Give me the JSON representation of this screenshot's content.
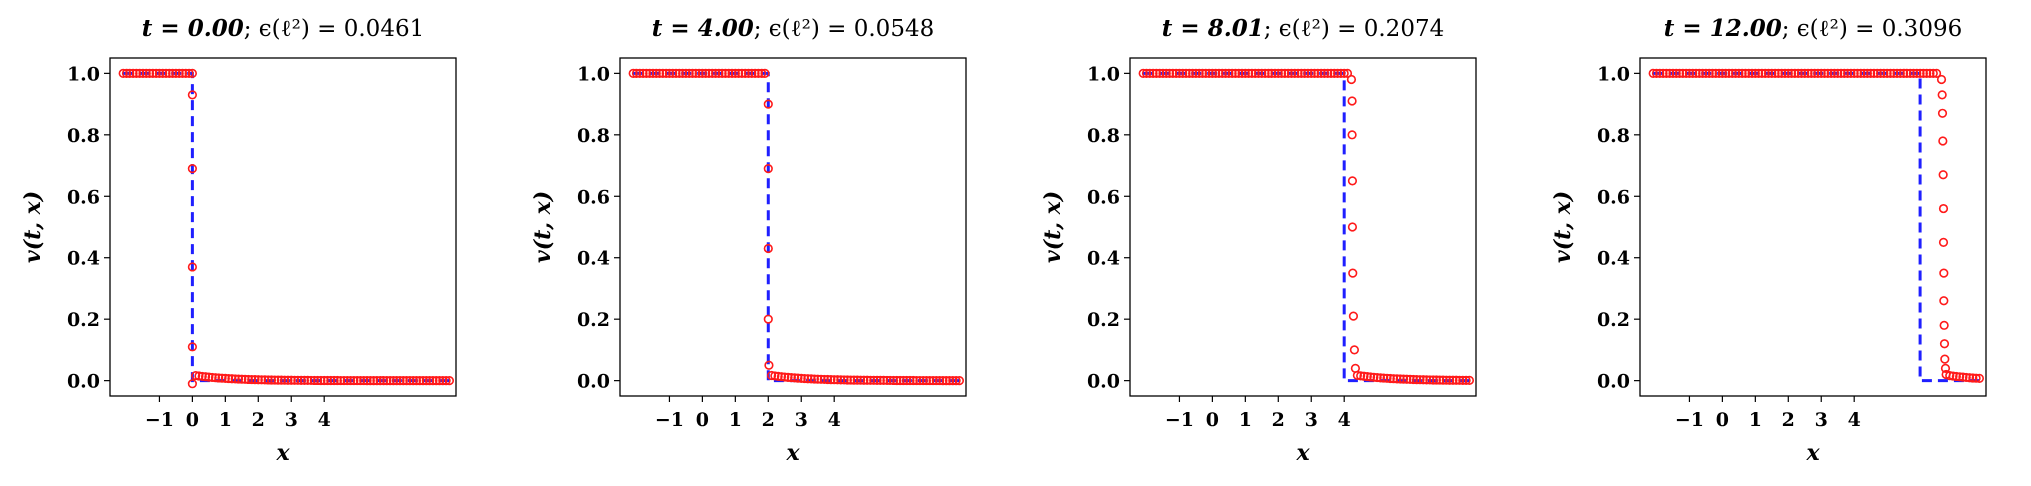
{
  "figure": {
    "colors": {
      "exact": "#1f1fff",
      "numeric": "#ff1a1a"
    },
    "axis": {
      "xlabel": "x",
      "ylabel": "v(t, x)"
    }
  },
  "chart_data": [
    {
      "type": "line",
      "title_bold": "t = 0.00",
      "title_rest": "; ϵ(ℓ²) = 0.0461",
      "xlabel": "x",
      "ylabel": "v(t, x)",
      "xlim": [
        -2.5,
        8.0
      ],
      "ylim": [
        -0.05,
        1.05
      ],
      "xticks": [
        -1,
        0,
        1,
        2,
        3,
        4
      ],
      "yticks": [
        0.0,
        0.2,
        0.4,
        0.6,
        0.8,
        1.0
      ],
      "xtick_labels": [
        "−1",
        "0",
        "1",
        "2",
        "3",
        "4"
      ],
      "ytick_labels": [
        "0.0",
        "0.2",
        "0.4",
        "0.6",
        "0.8",
        "1.0"
      ],
      "grid": false,
      "series": [
        {
          "style": "dashed-line",
          "x": [
            -2.1,
            0.0,
            0.0,
            7.8
          ],
          "y": [
            1.0,
            1.0,
            0.0,
            0.0
          ]
        },
        {
          "style": "circle-markers",
          "shock_x": 0.0,
          "x_range": [
            -2.1,
            7.8
          ],
          "transition_x": [
            0.0,
            0.0,
            0.0,
            0.0,
            0.0
          ],
          "transition_y": [
            0.93,
            0.69,
            0.37,
            0.11,
            -0.01
          ]
        }
      ]
    },
    {
      "type": "line",
      "title_bold": "t = 4.00",
      "title_rest": "; ϵ(ℓ²) = 0.0548",
      "xlabel": "x",
      "ylabel": "v(t, x)",
      "xlim": [
        -2.5,
        8.0
      ],
      "ylim": [
        -0.05,
        1.05
      ],
      "xticks": [
        -1,
        0,
        1,
        2,
        3,
        4
      ],
      "yticks": [
        0.0,
        0.2,
        0.4,
        0.6,
        0.8,
        1.0
      ],
      "xtick_labels": [
        "−1",
        "0",
        "1",
        "2",
        "3",
        "4"
      ],
      "ytick_labels": [
        "0.0",
        "0.2",
        "0.4",
        "0.6",
        "0.8",
        "1.0"
      ],
      "grid": false,
      "series": [
        {
          "style": "dashed-line",
          "x": [
            -2.1,
            2.0,
            2.0,
            7.8
          ],
          "y": [
            1.0,
            1.0,
            0.0,
            0.0
          ]
        },
        {
          "style": "circle-markers",
          "shock_x": 2.0,
          "x_range": [
            -2.1,
            7.8
          ],
          "transition_x": [
            2.0,
            2.0,
            2.0,
            2.0,
            2.02
          ],
          "transition_y": [
            0.9,
            0.69,
            0.43,
            0.2,
            0.05
          ]
        }
      ]
    },
    {
      "type": "line",
      "title_bold": "t = 8.01",
      "title_rest": "; ϵ(ℓ²) = 0.2074",
      "xlabel": "x",
      "ylabel": "v(t, x)",
      "xlim": [
        -2.5,
        8.0
      ],
      "ylim": [
        -0.05,
        1.05
      ],
      "xticks": [
        -1,
        0,
        1,
        2,
        3,
        4
      ],
      "yticks": [
        0.0,
        0.2,
        0.4,
        0.6,
        0.8,
        1.0
      ],
      "xtick_labels": [
        "−1",
        "0",
        "1",
        "2",
        "3",
        "4"
      ],
      "ytick_labels": [
        "0.0",
        "0.2",
        "0.4",
        "0.6",
        "0.8",
        "1.0"
      ],
      "grid": false,
      "series": [
        {
          "style": "dashed-line",
          "x": [
            -2.1,
            4.0,
            4.0,
            7.8
          ],
          "y": [
            1.0,
            1.0,
            0.0,
            0.0
          ]
        },
        {
          "style": "circle-markers",
          "shock_x": 4.2,
          "x_range": [
            -2.1,
            7.8
          ],
          "transition_x": [
            4.22,
            4.24,
            4.24,
            4.25,
            4.25,
            4.26,
            4.28,
            4.31,
            4.34
          ],
          "transition_y": [
            0.98,
            0.91,
            0.8,
            0.65,
            0.5,
            0.35,
            0.21,
            0.1,
            0.04
          ]
        }
      ]
    },
    {
      "type": "line",
      "title_bold": "t = 12.00",
      "title_rest": "; ϵ(ℓ²) = 0.3096",
      "xlabel": "x",
      "ylabel": "v(t, x)",
      "xlim": [
        -2.5,
        8.0
      ],
      "ylim": [
        -0.05,
        1.05
      ],
      "xticks": [
        -1,
        0,
        1,
        2,
        3,
        4
      ],
      "yticks": [
        0.0,
        0.2,
        0.4,
        0.6,
        0.8,
        1.0
      ],
      "xtick_labels": [
        "−1",
        "0",
        "1",
        "2",
        "3",
        "4"
      ],
      "ytick_labels": [
        "0.0",
        "0.2",
        "0.4",
        "0.6",
        "0.8",
        "1.0"
      ],
      "grid": false,
      "series": [
        {
          "style": "dashed-line",
          "x": [
            -2.1,
            6.0,
            6.0,
            7.8
          ],
          "y": [
            1.0,
            1.0,
            0.0,
            0.0
          ]
        },
        {
          "style": "circle-markers",
          "shock_x": 6.6,
          "x_range": [
            -2.1,
            7.8
          ],
          "transition_x": [
            6.65,
            6.67,
            6.68,
            6.69,
            6.7,
            6.71,
            6.71,
            6.72,
            6.72,
            6.73,
            6.74,
            6.75,
            6.77,
            6.79
          ],
          "transition_y": [
            0.98,
            0.93,
            0.87,
            0.78,
            0.67,
            0.56,
            0.45,
            0.35,
            0.26,
            0.18,
            0.12,
            0.07,
            0.04,
            0.02
          ]
        }
      ]
    }
  ]
}
